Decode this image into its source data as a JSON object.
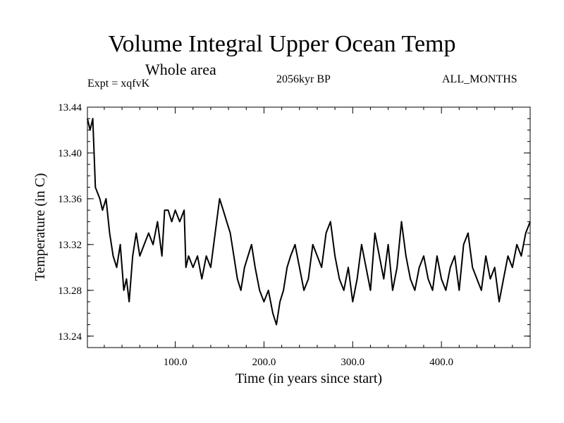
{
  "chart_data": {
    "type": "line",
    "title": "Volume Integral Upper Ocean Temp",
    "subtitle": "Whole area",
    "annotations": {
      "left": "Expt = xqfvK",
      "center": "2056kyr BP",
      "right": "ALL_MONTHS"
    },
    "xlabel": "Time (in years since start)",
    "ylabel": "Temperature (in C)",
    "xlim": [
      1,
      500
    ],
    "ylim": [
      13.23,
      13.44
    ],
    "xticks": [
      100,
      200,
      300,
      400
    ],
    "xtick_labels": [
      "100.0",
      "200.0",
      "300.0",
      "400.0"
    ],
    "yticks": [
      13.24,
      13.28,
      13.32,
      13.36,
      13.4,
      13.44
    ],
    "ytick_labels": [
      "13.24",
      "13.28",
      "13.32",
      "13.36",
      "13.40",
      "13.44"
    ],
    "grid": false,
    "series": [
      {
        "name": "Temperature",
        "color": "#000000",
        "x": [
          1,
          4,
          7,
          10,
          15,
          18,
          22,
          26,
          30,
          34,
          38,
          42,
          45,
          48,
          52,
          56,
          60,
          65,
          70,
          75,
          80,
          85,
          88,
          92,
          96,
          100,
          105,
          110,
          112,
          115,
          120,
          125,
          130,
          135,
          140,
          145,
          150,
          154,
          158,
          162,
          166,
          170,
          174,
          178,
          182,
          186,
          190,
          195,
          200,
          205,
          210,
          214,
          218,
          222,
          226,
          230,
          235,
          240,
          245,
          250,
          255,
          260,
          265,
          270,
          275,
          280,
          285,
          290,
          295,
          300,
          305,
          310,
          315,
          320,
          325,
          330,
          335,
          340,
          345,
          350,
          355,
          360,
          365,
          370,
          375,
          380,
          385,
          390,
          395,
          400,
          405,
          410,
          415,
          420,
          425,
          430,
          435,
          440,
          445,
          450,
          455,
          460,
          465,
          470,
          475,
          480,
          485,
          490,
          495,
          500
        ],
        "values": [
          13.43,
          13.42,
          13.43,
          13.37,
          13.36,
          13.35,
          13.36,
          13.33,
          13.31,
          13.3,
          13.32,
          13.28,
          13.29,
          13.27,
          13.31,
          13.33,
          13.31,
          13.32,
          13.33,
          13.32,
          13.34,
          13.31,
          13.35,
          13.35,
          13.34,
          13.35,
          13.34,
          13.35,
          13.3,
          13.31,
          13.3,
          13.31,
          13.29,
          13.31,
          13.3,
          13.33,
          13.36,
          13.35,
          13.34,
          13.33,
          13.31,
          13.29,
          13.28,
          13.3,
          13.31,
          13.32,
          13.3,
          13.28,
          13.27,
          13.28,
          13.26,
          13.25,
          13.27,
          13.28,
          13.3,
          13.31,
          13.32,
          13.3,
          13.28,
          13.29,
          13.32,
          13.31,
          13.3,
          13.33,
          13.34,
          13.31,
          13.29,
          13.28,
          13.3,
          13.27,
          13.29,
          13.32,
          13.3,
          13.28,
          13.33,
          13.31,
          13.29,
          13.32,
          13.28,
          13.3,
          13.34,
          13.31,
          13.29,
          13.28,
          13.3,
          13.31,
          13.29,
          13.28,
          13.31,
          13.29,
          13.28,
          13.3,
          13.31,
          13.28,
          13.32,
          13.33,
          13.3,
          13.29,
          13.28,
          13.31,
          13.29,
          13.3,
          13.27,
          13.29,
          13.31,
          13.3,
          13.32,
          13.31,
          13.33,
          13.34
        ]
      }
    ]
  }
}
